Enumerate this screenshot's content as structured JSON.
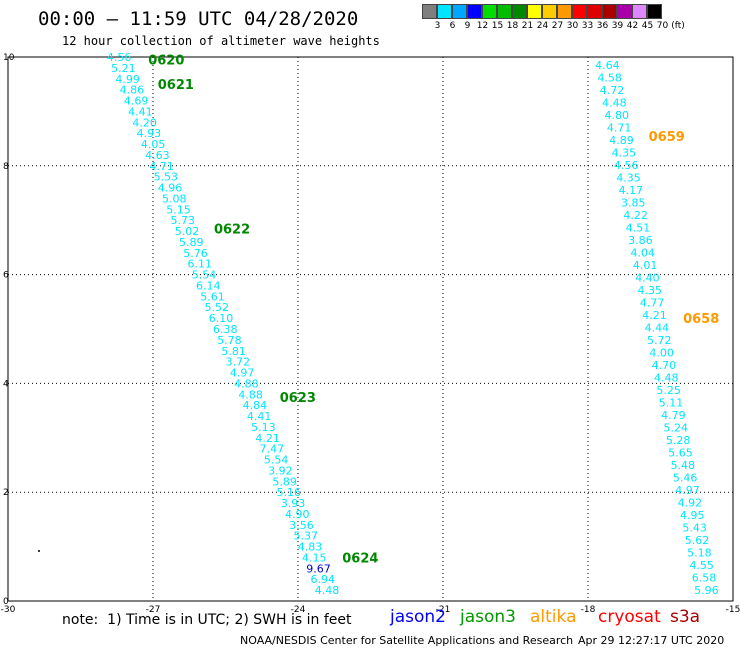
{
  "title": "00:00 – 11:59 UTC 04/28/2020",
  "subtitle": "12 hour collection of altimeter wave heights",
  "legend": {
    "unit": "(ft)",
    "bins": [
      {
        "label": "3",
        "color": "#7f7f7f"
      },
      {
        "label": "6",
        "color": "#00e5ff"
      },
      {
        "label": "9",
        "color": "#00a6ff"
      },
      {
        "label": "12",
        "color": "#0000ff"
      },
      {
        "label": "15",
        "color": "#00dd00"
      },
      {
        "label": "18",
        "color": "#00bb00"
      },
      {
        "label": "21",
        "color": "#008800"
      },
      {
        "label": "24",
        "color": "#ffff00"
      },
      {
        "label": "27",
        "color": "#ffcc00"
      },
      {
        "label": "30",
        "color": "#ff9900"
      },
      {
        "label": "33",
        "color": "#ff0000"
      },
      {
        "label": "36",
        "color": "#dd0000"
      },
      {
        "label": "39",
        "color": "#aa0000"
      },
      {
        "label": "42",
        "color": "#aa00aa"
      },
      {
        "label": "45",
        "color": "#dd88ff"
      },
      {
        "label": "70",
        "color": "#000000"
      }
    ]
  },
  "note": "note:  1) Time is in UTC; 2) SWH is in feet",
  "satellites": [
    {
      "name": "jason2",
      "color": "#0000ff"
    },
    {
      "name": "jason3",
      "color": "#009900"
    },
    {
      "name": "altika",
      "color": "#ff9900"
    },
    {
      "name": "cryosat",
      "color": "#ff0000"
    },
    {
      "name": "s3a",
      "color": "#aa0000"
    }
  ],
  "credit": "NOAA/NESDIS Center for Satellite Applications and Research",
  "generated": "Apr 29 12:27:17 UTC 2020",
  "colors": {
    "cyan": "#00e5ff",
    "green": "#008800",
    "orange": "#ff9900",
    "blue": "#0000cc",
    "pink": "#dd88ff",
    "darkred": "#880000"
  },
  "chart_data": {
    "type": "scatter",
    "xlim": [
      -30,
      -15
    ],
    "ylim": [
      0,
      10
    ],
    "x_ticks": [
      "-30",
      "-27",
      "-24",
      "-21",
      "-18",
      "-15"
    ],
    "y_ticks": [
      "0",
      "2",
      "4",
      "6",
      "8",
      "10"
    ],
    "grid": true,
    "series": [
      {
        "name": "jason3",
        "start": [
          -27.7,
          10.0
        ],
        "end": [
          -23.4,
          0.2
        ],
        "color": "#00e5ff",
        "values": [
          "4.56",
          "5.21",
          "4.99",
          "4.86",
          "4.69",
          "4.41",
          "4.20",
          "4.93",
          "4.05",
          "4.63",
          "4.71",
          "5.53",
          "4.96",
          "5.08",
          "5.15",
          "5.73",
          "5.02",
          "5.89",
          "5.76",
          "6.11",
          "5.54",
          "6.14",
          "5.61",
          "5.52",
          "6.10",
          "6.38",
          "5.78",
          "5.81",
          "3.72",
          "4.97",
          "4.88",
          "4.88",
          "4.84",
          "4.41",
          "5.13",
          "4.21",
          "7.47",
          "5.54",
          "3.92",
          "5.89",
          "5.16",
          "3.93",
          "4.90",
          "3.56",
          "5.37",
          "4.83",
          "4.15",
          "9.67",
          "6.94",
          "4.48"
        ],
        "times": [
          {
            "label": "0620",
            "y": 9.95
          },
          {
            "label": "0621",
            "y": 9.5
          },
          {
            "label": "0622",
            "y": 6.85
          },
          {
            "label": "0623",
            "y": 3.75
          },
          {
            "label": "0624",
            "y": 0.8
          }
        ]
      },
      {
        "name": "altika",
        "start": [
          -17.6,
          9.85
        ],
        "end": [
          -15.55,
          0.2
        ],
        "color": "#00e5ff",
        "values": [
          "4.64",
          "4.58",
          "4.72",
          "4.48",
          "4.80",
          "4.71",
          "4.89",
          "4.35",
          "4.56",
          "4.35",
          "4.17",
          "3.85",
          "4.22",
          "4.51",
          "3.86",
          "4.04",
          "4.01",
          "4.40",
          "4.35",
          "4.77",
          "4.21",
          "4.44",
          "5.72",
          "4.00",
          "4.70",
          "4.48",
          "5.25",
          "5.11",
          "4.79",
          "5.24",
          "5.28",
          "5.65",
          "5.48",
          "5.46",
          "4.97",
          "4.92",
          "4.95",
          "5.43",
          "5.62",
          "5.18",
          "4.55",
          "6.58",
          "5.96"
        ],
        "times": [
          {
            "label": "0659",
            "y": 8.55
          },
          {
            "label": "0658",
            "y": 5.2
          }
        ]
      }
    ]
  }
}
